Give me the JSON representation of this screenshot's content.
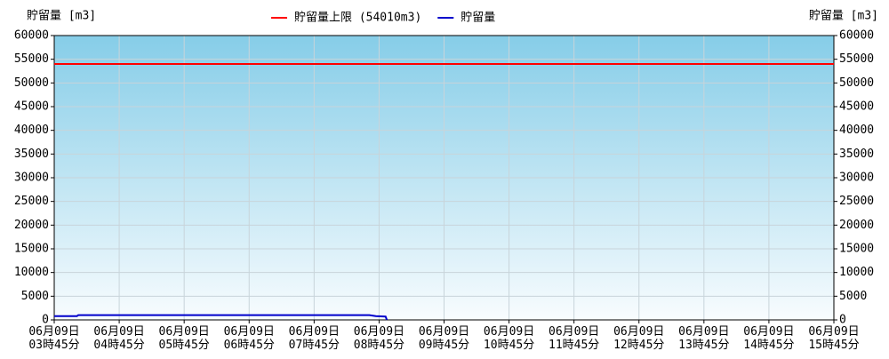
{
  "chart_data": {
    "type": "line",
    "y_label": "貯留量 [m3]",
    "y2_label": "貯留量 [m3]",
    "xlim": [
      3.75,
      15.75
    ],
    "xticks": [
      {
        "value": 3.75,
        "label": "06月09日\n03時45分"
      },
      {
        "value": 4.75,
        "label": "06月09日\n04時45分"
      },
      {
        "value": 5.75,
        "label": "06月09日\n05時45分"
      },
      {
        "value": 6.75,
        "label": "06月09日\n06時45分"
      },
      {
        "value": 7.75,
        "label": "06月09日\n07時45分"
      },
      {
        "value": 8.75,
        "label": "06月09日\n08時45分"
      },
      {
        "value": 9.75,
        "label": "06月09日\n09時45分"
      },
      {
        "value": 10.75,
        "label": "06月09日\n10時45分"
      },
      {
        "value": 11.75,
        "label": "06月09日\n11時45分"
      },
      {
        "value": 12.75,
        "label": "06月09日\n12時45分"
      },
      {
        "value": 13.75,
        "label": "06月09日\n13時45分"
      },
      {
        "value": 14.75,
        "label": "06月09日\n14時45分"
      },
      {
        "value": 15.75,
        "label": "06月09日\n15時45分"
      }
    ],
    "ylim": [
      0,
      60000
    ],
    "yticks": [
      0,
      5000,
      10000,
      15000,
      20000,
      25000,
      30000,
      35000,
      40000,
      45000,
      50000,
      55000,
      60000
    ],
    "y2lim": [
      0,
      60000
    ],
    "y2ticks": [
      0,
      5000,
      10000,
      15000,
      20000,
      25000,
      30000,
      35000,
      40000,
      45000,
      50000,
      55000,
      60000
    ],
    "grid": true,
    "legend": "top",
    "series": [
      {
        "name": "貯留量上限 (54010m3)",
        "color": "#ff0000",
        "x": [
          3.75,
          15.75
        ],
        "values": [
          54010,
          54010
        ]
      },
      {
        "name": "貯留量",
        "color": "#0000cc",
        "x": [
          3.75,
          4.1,
          4.12,
          8.6,
          8.7,
          8.85,
          8.87
        ],
        "values": [
          800,
          800,
          1000,
          1000,
          800,
          700,
          0
        ]
      }
    ]
  }
}
